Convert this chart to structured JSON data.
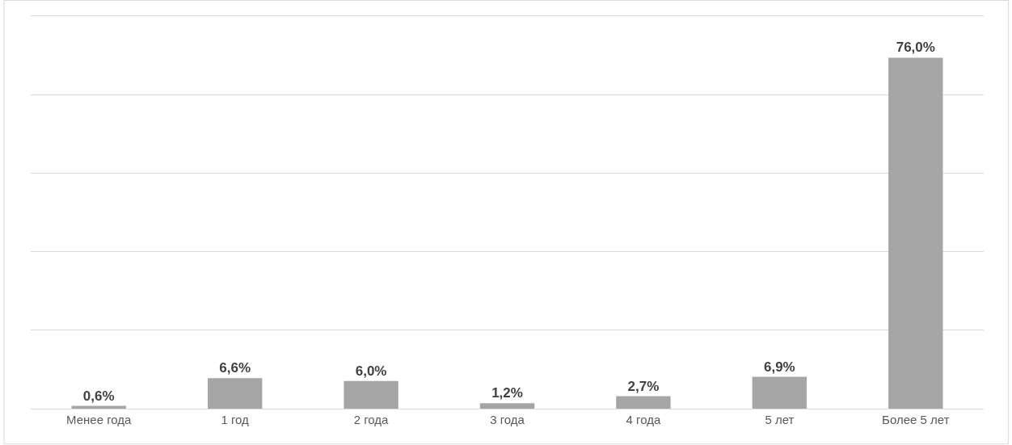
{
  "chart_data": {
    "type": "bar",
    "categories": [
      "Менее года",
      "1 год",
      "2 года",
      "3 года",
      "4 года",
      "5 лет",
      "Более 5 лет"
    ],
    "values": [
      0.6,
      6.6,
      6.0,
      1.2,
      2.7,
      6.9,
      76.0
    ],
    "value_labels": [
      "0,6%",
      "6,6%",
      "6,0%",
      "1,2%",
      "2,7%",
      "6,9%",
      "76,0%"
    ],
    "color": "#a5a5a5",
    "ylim": [
      0,
      85
    ],
    "yticks": [
      {
        "value": 0,
        "label": null
      },
      {
        "value": 17,
        "label": null
      },
      {
        "value": 34,
        "label": null
      },
      {
        "value": 51,
        "label": null
      },
      {
        "value": 68,
        "label": null
      },
      {
        "value": 85,
        "label": null
      }
    ],
    "grid": "y",
    "tick_labels": "x"
  }
}
